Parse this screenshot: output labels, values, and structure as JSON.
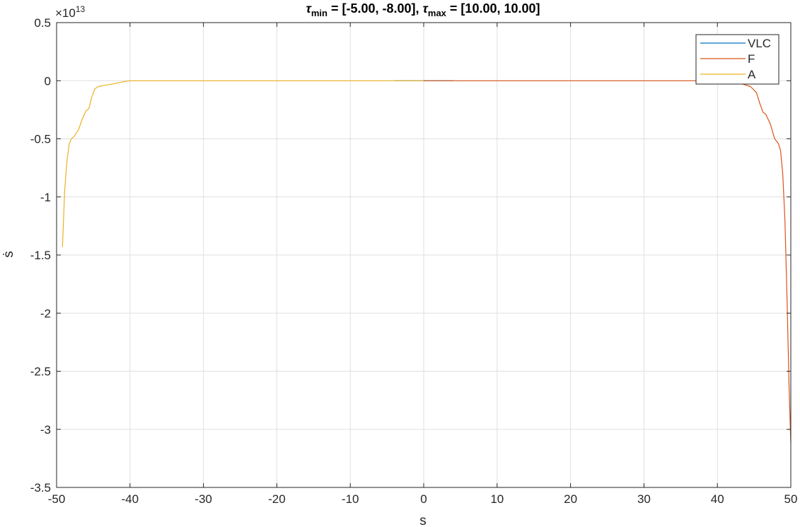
{
  "chart_data": {
    "type": "line",
    "title_parts": {
      "sym": "τ",
      "min_sub": "min",
      "min_val": " = [-5.00, -8.00], ",
      "max_sub": "max",
      "max_val": " = [10.00, 10.00]"
    },
    "xlabel": "s",
    "ylabel": "ṡ",
    "y_exponent_base": "×10",
    "y_exponent_power": "13",
    "xlim": [
      -50,
      50
    ],
    "ylim": [
      -3.5,
      0.5
    ],
    "x_ticks": [
      -50,
      -40,
      -30,
      -20,
      -10,
      0,
      10,
      20,
      30,
      40,
      50
    ],
    "x_tick_labels": [
      "-50",
      "-40",
      "-30",
      "-20",
      "-10",
      "0",
      "10",
      "20",
      "30",
      "40",
      "50"
    ],
    "y_ticks": [
      0.5,
      0,
      -0.5,
      -1,
      -1.5,
      -2,
      -2.5,
      -3,
      -3.5
    ],
    "y_tick_labels": [
      "0.5",
      "0",
      "-0.5",
      "-1",
      "-1.5",
      "-2",
      "-2.5",
      "-3",
      "-3.5"
    ],
    "grid": true,
    "legend_position": "top-right",
    "series": [
      {
        "name": "VLC",
        "color": "#0072BD",
        "x": [
          -4,
          0,
          4
        ],
        "y": [
          0,
          0,
          0
        ]
      },
      {
        "name": "F",
        "color": "#D95319",
        "x": [
          0,
          10,
          20,
          30,
          40,
          42.5,
          43.5,
          44.5,
          45.3,
          45.8,
          46.2,
          46.6,
          47.2,
          47.8,
          48.3,
          48.6,
          48.9,
          49.2,
          49.5,
          49.75,
          50
        ],
        "y": [
          0,
          0,
          0,
          0,
          0,
          -0.01,
          -0.03,
          -0.05,
          -0.1,
          -0.2,
          -0.27,
          -0.29,
          -0.37,
          -0.5,
          -0.54,
          -0.6,
          -0.8,
          -1.2,
          -1.9,
          -2.6,
          -3.12
        ]
      },
      {
        "name": "A",
        "color": "#EDB120",
        "x": [
          -49.2,
          -48.9,
          -48.6,
          -48.3,
          -48.0,
          -47.6,
          -47.0,
          -46.5,
          -46.0,
          -45.6,
          -45.2,
          -44.8,
          -44.3,
          -43.5,
          -42.5,
          -41.0,
          -40,
          -30,
          -20,
          -10,
          0
        ],
        "y": [
          -1.43,
          -0.95,
          -0.7,
          -0.55,
          -0.5,
          -0.48,
          -0.42,
          -0.33,
          -0.26,
          -0.24,
          -0.14,
          -0.07,
          -0.05,
          -0.04,
          -0.03,
          -0.01,
          0,
          0,
          0,
          0,
          0
        ]
      }
    ]
  }
}
